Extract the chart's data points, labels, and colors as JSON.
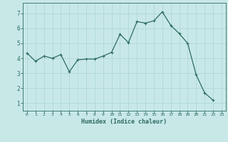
{
  "x": [
    0,
    1,
    2,
    3,
    4,
    5,
    6,
    7,
    8,
    9,
    10,
    11,
    12,
    13,
    14,
    15,
    16,
    17,
    18,
    19,
    20,
    21,
    22,
    23
  ],
  "y": [
    4.35,
    3.8,
    4.15,
    4.0,
    4.25,
    3.1,
    3.9,
    3.95,
    3.95,
    4.15,
    4.4,
    5.6,
    5.05,
    6.45,
    6.35,
    6.5,
    7.1,
    6.2,
    5.65,
    5.0,
    2.9,
    1.7,
    1.2,
    null
  ],
  "xlabel": "Humidex (Indice chaleur)",
  "line_color": "#2d6b5e",
  "bg_color": "#c8e8e8",
  "grid_color": "#b0d8d8",
  "xlim": [
    -0.5,
    23.5
  ],
  "ylim": [
    0.5,
    7.7
  ],
  "yticks": [
    1,
    2,
    3,
    4,
    5,
    6,
    7
  ],
  "xticks": [
    0,
    1,
    2,
    3,
    4,
    5,
    6,
    7,
    8,
    9,
    10,
    11,
    12,
    13,
    14,
    15,
    16,
    17,
    18,
    19,
    20,
    21,
    22,
    23
  ],
  "tick_color": "#2d6b5e",
  "axis_color": "#2d6b5e",
  "xlabel_color": "#2d6b5e"
}
